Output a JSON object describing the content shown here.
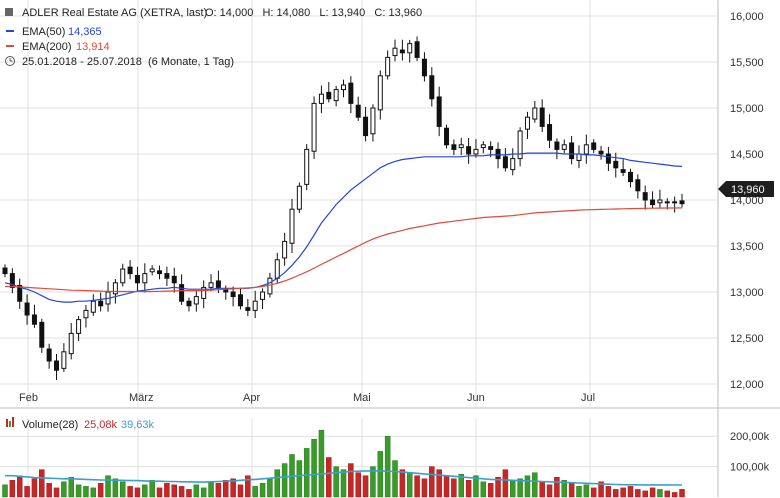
{
  "header": {
    "instrument": "ADLER Real Estate AG (XETRA, last)",
    "ohlc": "O: 14,000   H: 14,080   L: 13,940   C: 13,960",
    "ema50_label": "EMA(50)",
    "ema50_value": "14,365",
    "ema200_label": "EMA(200)",
    "ema200_value": "13,914",
    "range_text": "25.01.2018 - 25.07.2018",
    "range_note": "(6 Monate, 1 Tag)",
    "last_price_tag": "13,960"
  },
  "colors": {
    "up": "#3a9a2a",
    "down": "#c62828",
    "ema50": "#2346d6",
    "ema200": "#e04a3a",
    "volume_avg": "#3aa0cc",
    "grid": "#e0e0e0",
    "candle": "#111111"
  },
  "volume_legend": {
    "label": "Volume(28)",
    "value1": "25,08k",
    "value2": "39,63k"
  },
  "chart_data": [
    {
      "type": "candlestick",
      "date_range": [
        "2018-01-25",
        "2018-07-25"
      ],
      "x_tick_labels": [
        "Feb",
        "März",
        "Apr",
        "Mai",
        "Jun",
        "Jul"
      ],
      "y_ticks": [
        12000,
        12500,
        13000,
        13500,
        14000,
        14500,
        15000,
        15500,
        16000
      ],
      "y_tick_labels": [
        "12,000",
        "12,500",
        "13,000",
        "13,500",
        "14,000",
        "14,500",
        "15,000",
        "15,500",
        "16,000"
      ],
      "ylim": [
        11850,
        16150
      ],
      "close": [
        13200,
        13050,
        12900,
        12750,
        12650,
        12400,
        12250,
        12150,
        12350,
        12550,
        12700,
        12800,
        12900,
        12850,
        13000,
        13100,
        13250,
        13200,
        13100,
        13200,
        13250,
        13200,
        13150,
        13100,
        12900,
        12850,
        12950,
        13050,
        13100,
        13050,
        13000,
        12950,
        12850,
        12800,
        12900,
        13000,
        13150,
        13350,
        13550,
        13900,
        14150,
        14550,
        15050,
        15150,
        15100,
        15200,
        15250,
        15050,
        14900,
        14700,
        15000,
        15350,
        15550,
        15650,
        15600,
        15700,
        15550,
        15350,
        15100,
        14800,
        14600,
        14550,
        14600,
        14500,
        14550,
        14600,
        14550,
        14450,
        14350,
        14450,
        14750,
        14900,
        15000,
        14800,
        14650,
        14550,
        14600,
        14450,
        14500,
        14600,
        14550,
        14500,
        14400,
        14350,
        14300,
        14200,
        14100,
        14000,
        13950,
        14000,
        13980,
        13970,
        13960
      ],
      "series": [
        {
          "name": "EMA(50)",
          "values": [
            13100,
            13080,
            13050,
            13030,
            13000,
            12960,
            12920,
            12900,
            12890,
            12890,
            12900,
            12900,
            12910,
            12920,
            12930,
            12950,
            12970,
            12990,
            13010,
            13020,
            13030,
            13040,
            13040,
            13050,
            13040,
            13030,
            13030,
            13030,
            13030,
            13040,
            13040,
            13040,
            13040,
            13040,
            13050,
            13070,
            13100,
            13150,
            13210,
            13290,
            13380,
            13490,
            13620,
            13750,
            13850,
            13950,
            14030,
            14110,
            14170,
            14230,
            14290,
            14350,
            14390,
            14420,
            14440,
            14450,
            14460,
            14470,
            14470,
            14470,
            14470,
            14470,
            14470,
            14480,
            14480,
            14480,
            14490,
            14490,
            14490,
            14500,
            14500,
            14510,
            14510,
            14510,
            14510,
            14510,
            14500,
            14500,
            14500,
            14490,
            14490,
            14480,
            14470,
            14460,
            14450,
            14430,
            14420,
            14410,
            14400,
            14390,
            14380,
            14370,
            14365
          ]
        },
        {
          "name": "EMA(200)",
          "values": [
            13060,
            13060,
            13055,
            13050,
            13045,
            13040,
            13035,
            13030,
            13025,
            13020,
            13018,
            13015,
            13012,
            13010,
            13008,
            13005,
            13005,
            13005,
            13005,
            13005,
            13005,
            13008,
            13010,
            13012,
            13015,
            13015,
            13015,
            13015,
            13020,
            13025,
            13030,
            13035,
            13040,
            13045,
            13050,
            13060,
            13075,
            13095,
            13120,
            13150,
            13185,
            13220,
            13260,
            13300,
            13340,
            13380,
            13420,
            13460,
            13500,
            13540,
            13575,
            13605,
            13630,
            13650,
            13670,
            13690,
            13705,
            13720,
            13735,
            13750,
            13760,
            13770,
            13780,
            13790,
            13800,
            13810,
            13815,
            13820,
            13825,
            13830,
            13840,
            13850,
            13860,
            13865,
            13870,
            13875,
            13880,
            13885,
            13890,
            13893,
            13896,
            13898,
            13900,
            13902,
            13904,
            13906,
            13908,
            13910,
            13911,
            13912,
            13913,
            13913,
            13914
          ]
        }
      ]
    },
    {
      "type": "bar",
      "title": "Volume(28)",
      "y_tick_labels": [
        "100,00k",
        "200,00k"
      ],
      "y_ticks": [
        100000,
        200000
      ],
      "ylim": [
        0,
        260000
      ],
      "volume": [
        40000,
        55000,
        70000,
        35000,
        60000,
        90000,
        45000,
        30000,
        50000,
        65000,
        40000,
        35000,
        30000,
        45000,
        70000,
        60000,
        50000,
        35000,
        30000,
        40000,
        55000,
        30000,
        45000,
        40000,
        35000,
        25000,
        40000,
        30000,
        50000,
        45000,
        55000,
        60000,
        40000,
        70000,
        35000,
        45000,
        60000,
        90000,
        110000,
        140000,
        120000,
        160000,
        190000,
        220000,
        130000,
        100000,
        90000,
        110000,
        80000,
        70000,
        100000,
        150000,
        200000,
        120000,
        90000,
        80000,
        70000,
        60000,
        100000,
        90000,
        70000,
        60000,
        75000,
        55000,
        70000,
        50000,
        45000,
        65000,
        90000,
        55000,
        60000,
        70000,
        80000,
        50000,
        40000,
        65000,
        55000,
        45000,
        35000,
        40000,
        30000,
        50000,
        35000,
        25000,
        30000,
        35000,
        25000,
        20000,
        30000,
        25000,
        20000,
        15000,
        25080
      ],
      "average": [
        70000,
        70000,
        68000,
        66000,
        64000,
        63000,
        62000,
        61000,
        60000,
        60000,
        59000,
        58000,
        57000,
        56000,
        56000,
        55000,
        55000,
        54000,
        54000,
        53000,
        52000,
        52000,
        51000,
        51000,
        50000,
        50000,
        49000,
        49000,
        50000,
        51000,
        52000,
        53000,
        55000,
        57000,
        58000,
        60000,
        62000,
        64000,
        66000,
        68000,
        70000,
        72000,
        74000,
        76000,
        78000,
        80000,
        82000,
        84000,
        85000,
        86000,
        86000,
        86000,
        85000,
        84000,
        82000,
        80000,
        78000,
        76000,
        74000,
        72000,
        70000,
        68000,
        66000,
        64000,
        62000,
        60000,
        58000,
        57000,
        56000,
        55000,
        54000,
        53000,
        52000,
        51000,
        50000,
        49000,
        48000,
        47000,
        46000,
        45000,
        44000,
        43000,
        42000,
        41000,
        40500,
        40200,
        40000,
        39900,
        39800,
        39700,
        39700,
        39650,
        39630
      ]
    }
  ]
}
